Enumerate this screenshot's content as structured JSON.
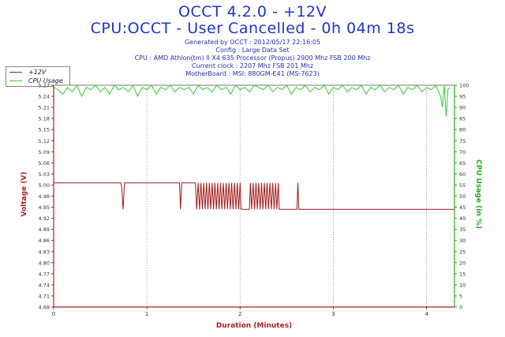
{
  "header": {
    "title1": "OCCT 4.2.0 - +12V",
    "title2": "CPU:OCCT - User Cancelled - 0h 04m 18s",
    "info": [
      "Generated by OCCT : 2012/05/17 22:16:05",
      "Config : Large Data Set",
      "CPU : AMD Athlon(tm) II X4 635 Processor (Propus) 2900 Mhz FSB 200 Mhz",
      "Current clock : 2207 Mhz FSB 201 Mhz",
      "MotherBoard : MSI: 880GM-E41 (MS-7623)"
    ]
  },
  "legend": {
    "items": [
      {
        "label": "+12V",
        "color": "#a01818"
      },
      {
        "label": "CPU Usage",
        "color": "#33cc33"
      }
    ]
  },
  "colors": {
    "voltage": "#a01818",
    "cpu": "#33cc33",
    "axis_left": "#aa2222",
    "axis_right": "#22aa22",
    "axis_bottom": "#aa2222",
    "grid": "#888888"
  },
  "chart_data": {
    "type": "line",
    "xlabel": "Duration (Minutes)",
    "ylabel": "Voltage (V)",
    "y2label": "CPU Usage (in %)",
    "xlim": [
      0,
      4.3
    ],
    "ylim": [
      4.68,
      5.27
    ],
    "y2lim": [
      0,
      100
    ],
    "x_ticks": [
      0,
      1,
      2,
      3,
      4
    ],
    "y_ticks": [
      "4.68",
      "4.71",
      "4.74",
      "4.77",
      "4.80",
      "4.83",
      "4.86",
      "4.89",
      "4.92",
      "4.95",
      "4.98",
      "5.00",
      "5.03",
      "5.06",
      "5.09",
      "5.12",
      "5.15",
      "5.18",
      "5.21",
      "5.24",
      "5.27"
    ],
    "y2_ticks": [
      0,
      5,
      10,
      15,
      20,
      25,
      30,
      35,
      40,
      45,
      50,
      55,
      60,
      65,
      70,
      75,
      80,
      85,
      90,
      95,
      100
    ],
    "grid": true,
    "legend_position": "top-left",
    "series": [
      {
        "name": "+12V",
        "x": [
          0,
          0.72,
          0.73,
          0.745,
          0.76,
          0.77,
          1.35,
          1.36,
          1.375,
          1.39,
          1.4,
          1.52,
          1.535,
          1.55,
          1.565,
          1.58,
          1.595,
          1.61,
          1.625,
          1.64,
          1.655,
          1.67,
          1.685,
          1.7,
          1.715,
          1.73,
          1.745,
          1.76,
          1.775,
          1.79,
          1.805,
          1.82,
          1.835,
          1.85,
          1.865,
          1.88,
          1.895,
          1.91,
          1.925,
          1.94,
          1.955,
          1.97,
          1.985,
          2.0,
          2.01,
          2.1,
          2.11,
          2.125,
          2.14,
          2.155,
          2.17,
          2.185,
          2.2,
          2.215,
          2.23,
          2.245,
          2.26,
          2.275,
          2.29,
          2.305,
          2.32,
          2.335,
          2.35,
          2.365,
          2.38,
          2.395,
          2.41,
          2.42,
          2.6,
          2.61,
          2.62,
          2.63,
          4.3
        ],
        "values": [
          5.01,
          5.01,
          5.0,
          4.94,
          5.01,
          5.01,
          5.01,
          4.94,
          5.01,
          5.01,
          5.01,
          5.01,
          4.94,
          5.01,
          4.94,
          5.01,
          4.94,
          5.01,
          4.94,
          5.01,
          4.94,
          5.01,
          4.94,
          5.01,
          4.94,
          5.01,
          4.94,
          5.01,
          4.94,
          5.01,
          4.94,
          5.01,
          4.94,
          5.01,
          4.94,
          5.01,
          4.94,
          5.01,
          4.94,
          5.01,
          4.94,
          5.01,
          4.94,
          5.01,
          4.94,
          4.94,
          5.01,
          4.94,
          5.01,
          4.94,
          5.01,
          4.94,
          5.01,
          4.94,
          5.01,
          4.94,
          5.01,
          4.94,
          5.01,
          4.94,
          5.01,
          4.94,
          5.01,
          4.94,
          5.01,
          4.94,
          5.01,
          4.94,
          4.94,
          4.94,
          5.01,
          4.94,
          4.94
        ]
      },
      {
        "name": "CPU Usage",
        "axis": "right",
        "x": [
          0,
          0.05,
          0.1,
          0.15,
          0.2,
          0.25,
          0.3,
          0.35,
          0.4,
          0.45,
          0.5,
          0.55,
          0.6,
          0.65,
          0.7,
          0.75,
          0.8,
          0.85,
          0.9,
          0.95,
          1.0,
          1.05,
          1.1,
          1.15,
          1.2,
          1.25,
          1.3,
          1.35,
          1.4,
          1.45,
          1.5,
          1.55,
          1.6,
          1.65,
          1.7,
          1.75,
          1.8,
          1.85,
          1.9,
          1.95,
          2.0,
          2.05,
          2.1,
          2.15,
          2.2,
          2.25,
          2.3,
          2.35,
          2.4,
          2.45,
          2.5,
          2.55,
          2.6,
          2.65,
          2.7,
          2.75,
          2.8,
          2.85,
          2.9,
          2.95,
          3.0,
          3.05,
          3.1,
          3.15,
          3.2,
          3.25,
          3.3,
          3.35,
          3.4,
          3.45,
          3.5,
          3.55,
          3.6,
          3.65,
          3.7,
          3.75,
          3.8,
          3.85,
          3.9,
          3.95,
          4.0,
          4.05,
          4.1,
          4.13,
          4.15,
          4.17,
          4.19,
          4.21,
          4.23,
          4.25
        ],
        "values": [
          99,
          98,
          96,
          99,
          97,
          100,
          95,
          99,
          98,
          100,
          97,
          99,
          96,
          100,
          98,
          99,
          97,
          100,
          95,
          99,
          98,
          100,
          96,
          99,
          98,
          100,
          97,
          99,
          98,
          99,
          96,
          100,
          98,
          99,
          97,
          100,
          98,
          99,
          96,
          100,
          98,
          99,
          97,
          100,
          99,
          98,
          100,
          97,
          99,
          98,
          100,
          96,
          99,
          98,
          100,
          97,
          99,
          98,
          100,
          96,
          99,
          98,
          100,
          97,
          99,
          98,
          100,
          96,
          99,
          98,
          100,
          97,
          99,
          98,
          100,
          96,
          99,
          98,
          100,
          97,
          99,
          98,
          100,
          97,
          95,
          90,
          100,
          86,
          98,
          99
        ]
      }
    ]
  }
}
